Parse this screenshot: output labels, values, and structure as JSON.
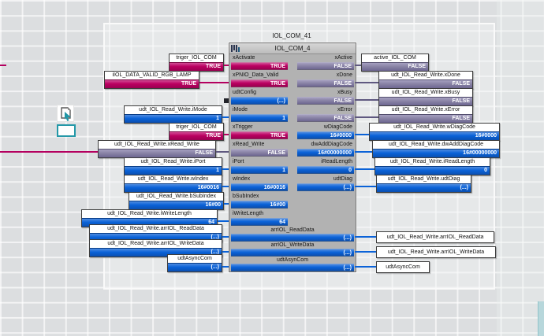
{
  "colors": {
    "bool_true": "#bb0061",
    "bool_false": "#6d6691",
    "num": "#0a62d8",
    "wire_true": "#b4005f",
    "wire_false": "#5f5880",
    "wire_num": "#0a62d8",
    "block_body": "#b2b2b2",
    "canvas": "#dcdee0",
    "teal_accent": "#2498a8"
  },
  "icons": {
    "cursor_tool": "select-cursor-icon",
    "marquee_tool": "selection-rect-icon",
    "block_header": "fb-type-icon",
    "unconnected_pin": "unconnected-pin-marker"
  },
  "block": {
    "instance_title": "IOL_COM_41",
    "type_name": "IOL_COM_4",
    "inputs": [
      {
        "name": "xActivate",
        "value": "TRUE",
        "kind": "bool_true"
      },
      {
        "name": "xPNIO_Data_Valid",
        "value": "TRUE",
        "kind": "bool_true"
      },
      {
        "name": "udtConfig",
        "value": "(...)",
        "kind": "num",
        "unconnected": true
      },
      {
        "name": "iMode",
        "value": "1",
        "kind": "num"
      },
      {
        "name": "xTrigger",
        "value": "TRUE",
        "kind": "bool_true"
      },
      {
        "name": "xRead_Write",
        "value": "FALSE",
        "kind": "bool_false"
      },
      {
        "name": "iPort",
        "value": "1",
        "kind": "num"
      },
      {
        "name": "wIndex",
        "value": "16#0016",
        "kind": "num"
      },
      {
        "name": "bSubIndex",
        "value": "16#00",
        "kind": "num"
      },
      {
        "name": "iWriteLength",
        "value": "64",
        "kind": "num"
      }
    ],
    "outputs": [
      {
        "name": "xActive",
        "value": "FALSE",
        "kind": "bool_false"
      },
      {
        "name": "xDone",
        "value": "FALSE",
        "kind": "bool_false"
      },
      {
        "name": "xBusy",
        "value": "FALSE",
        "kind": "bool_false"
      },
      {
        "name": "xError",
        "value": "FALSE",
        "kind": "bool_false"
      },
      {
        "name": "wDiagCode",
        "value": "16#0000",
        "kind": "num"
      },
      {
        "name": "dwAddDiagCode",
        "value": "16#00000000",
        "kind": "num"
      },
      {
        "name": "iReadLength",
        "value": "0",
        "kind": "num"
      },
      {
        "name": "udtDiag",
        "value": "(...)",
        "kind": "num"
      }
    ],
    "inouts": [
      {
        "name": "arrIOL_ReadData",
        "value": "(...)",
        "kind": "num"
      },
      {
        "name": "arrIOL_WriteData",
        "value": "(...)",
        "kind": "num"
      },
      {
        "name": "udtAsynCom",
        "value": "(...)",
        "kind": "num"
      }
    ]
  },
  "left_operands": [
    {
      "label": "triger_IOL_COM",
      "value": "TRUE",
      "kind": "bool_true"
    },
    {
      "label": "iIOL_DATA_VALID_RGB_LAMP",
      "value": "TRUE",
      "kind": "bool_true"
    },
    {
      "label": "udt_IOL_Read_Write.iMode",
      "value": "1",
      "kind": "num"
    },
    {
      "label": "triger_IOL_COM",
      "value": "TRUE",
      "kind": "bool_true"
    },
    {
      "label": "udt_IOL_Read_Write.xRead_Write",
      "value": "FALSE",
      "kind": "bool_false"
    },
    {
      "label": "udt_IOL_Read_Write.iPort",
      "value": "1",
      "kind": "num"
    },
    {
      "label": "udt_IOL_Read_Write.wIndex",
      "value": "16#0016",
      "kind": "num"
    },
    {
      "label": "udt_IOL_Read_Write.bSubIndex",
      "value": "16#00",
      "kind": "num"
    },
    {
      "label": "udt_IOL_Read_Write.iWriteLength",
      "value": "64",
      "kind": "num"
    },
    {
      "label": "udt_IOL_Read_Write.arrIOL_ReadData",
      "value": "(...)",
      "kind": "num"
    },
    {
      "label": "udt_IOL_Read_Write.arrIOL_WriteData",
      "value": "(...)",
      "kind": "num"
    },
    {
      "label": "udtAsyncCom",
      "value": "(...)",
      "kind": "num"
    }
  ],
  "right_operands": [
    {
      "label": "active_IOL_COM",
      "value": "FALSE",
      "kind": "bool_false"
    },
    {
      "label": "udt_IOL_Read_Write.xDone",
      "value": "FALSE",
      "kind": "bool_false"
    },
    {
      "label": "udt_IOL_Read_Write.xBusy",
      "value": "FALSE",
      "kind": "bool_false"
    },
    {
      "label": "udt_IOL_Read_Write.xError",
      "value": "FALSE",
      "kind": "bool_false"
    },
    {
      "label": "udt_IOL_Read_Write.wDiagCode",
      "value": "16#0000",
      "kind": "num"
    },
    {
      "label": "udt_IOL_Read_Write.dwAddDiagCode",
      "value": "16#00000000",
      "kind": "num"
    },
    {
      "label": "udt_IOL_Read_Write.iReadLength",
      "value": "0",
      "kind": "num"
    },
    {
      "label": "udt_IOL_Read_Write.udtDiag",
      "value": "(...)",
      "kind": "num"
    },
    {
      "label": "udt_IOL_Read_Write.arrIOL_ReadData",
      "kind": "label_only"
    },
    {
      "label": "udt_IOL_Read_Write.arrIOL_WriteData",
      "kind": "label_only"
    },
    {
      "label": "udtAsyncCom",
      "kind": "label_only"
    }
  ]
}
